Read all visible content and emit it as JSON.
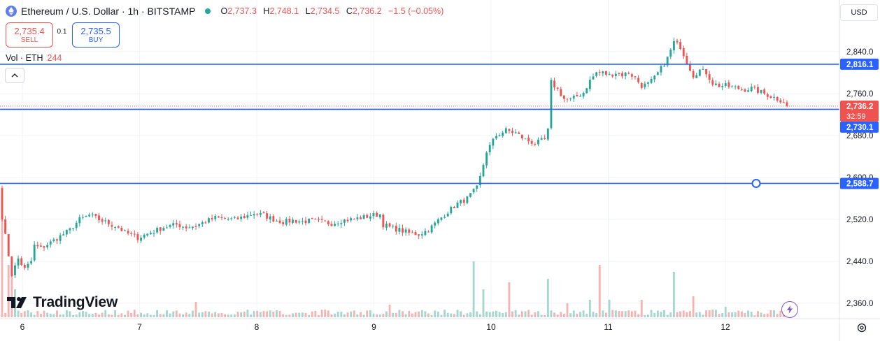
{
  "header": {
    "title": "Ethereum / U.S. Dollar · 1h · BITSTAMP",
    "ohlc": {
      "o_label": "O",
      "o": "2,737.3",
      "h_label": "H",
      "h": "2,748.1",
      "l_label": "L",
      "l": "2,734.5",
      "c_label": "C",
      "c": "2,736.2",
      "change": "−1.5 (−0.05%)"
    },
    "sell_price": "2,735.4",
    "sell_label": "SELL",
    "spread": "0.1",
    "buy_price": "2,735.5",
    "buy_label": "BUY",
    "volume_label": "Vol · ETH",
    "volume_value": "244",
    "currency": "USD"
  },
  "branding": {
    "logo_text": "TradingView"
  },
  "colors": {
    "up": "#26a69a",
    "down": "#ef5350",
    "hline": "#2962ff",
    "up_vol": "#a5d6d0",
    "down_vol": "#f5b3b1"
  },
  "chart_data": {
    "type": "candlestick",
    "symbol": "ETHUSD",
    "exchange": "BITSTAMP",
    "interval": "1h",
    "ylim": [
      2325,
      2895
    ],
    "y_ticks": [
      "2,840.0",
      "2,760.0",
      "2,680.0",
      "2,600.0",
      "2,520.0",
      "2,440.0",
      "2,360.0"
    ],
    "y_tick_values": [
      2840,
      2760,
      2680,
      2600,
      2520,
      2440,
      2360
    ],
    "x_tick_labels": [
      "6",
      "7",
      "8",
      "9",
      "10",
      "11",
      "12"
    ],
    "grid": true,
    "horizontal_lines": [
      {
        "value": 2816.1,
        "label": "2,816.1"
      },
      {
        "value": 2730.1,
        "label": "2,730.1"
      },
      {
        "value": 2588.7,
        "label": "2,588.7"
      }
    ],
    "last_price": {
      "value": 2736.2,
      "label": "2,736.2",
      "countdown": "32:59"
    },
    "path": [
      [
        0,
        2525
      ],
      [
        3,
        2415
      ],
      [
        5,
        2445
      ],
      [
        7,
        2425
      ],
      [
        9,
        2440
      ],
      [
        10,
        2470
      ],
      [
        12,
        2465
      ],
      [
        15,
        2476
      ],
      [
        18,
        2488
      ],
      [
        21,
        2500
      ],
      [
        24,
        2520
      ],
      [
        27,
        2528
      ],
      [
        30,
        2520
      ],
      [
        33,
        2512
      ],
      [
        36,
        2505
      ],
      [
        38,
        2495
      ],
      [
        40,
        2490
      ],
      [
        42,
        2485
      ],
      [
        44,
        2490
      ],
      [
        46,
        2495
      ],
      [
        50,
        2505
      ],
      [
        54,
        2510
      ],
      [
        57,
        2505
      ],
      [
        60,
        2508
      ],
      [
        63,
        2516
      ],
      [
        66,
        2523
      ],
      [
        69,
        2521
      ],
      [
        72,
        2520
      ],
      [
        75,
        2525
      ],
      [
        78,
        2532
      ],
      [
        81,
        2528
      ],
      [
        84,
        2520
      ],
      [
        87,
        2515
      ],
      [
        90,
        2518
      ],
      [
        93,
        2516
      ],
      [
        96,
        2518
      ],
      [
        99,
        2515
      ],
      [
        102,
        2512
      ],
      [
        105,
        2518
      ],
      [
        108,
        2520
      ],
      [
        111,
        2523
      ],
      [
        114,
        2527
      ],
      [
        117,
        2530
      ],
      [
        118,
        2510
      ],
      [
        120,
        2505
      ],
      [
        123,
        2500
      ],
      [
        126,
        2494
      ],
      [
        129,
        2492
      ],
      [
        132,
        2500
      ],
      [
        135,
        2518
      ],
      [
        138,
        2535
      ],
      [
        141,
        2550
      ],
      [
        144,
        2560
      ],
      [
        147,
        2580
      ],
      [
        148,
        2600
      ],
      [
        150,
        2650
      ],
      [
        153,
        2680
      ],
      [
        156,
        2690
      ],
      [
        159,
        2685
      ],
      [
        162,
        2672
      ],
      [
        165,
        2665
      ],
      [
        168,
        2672
      ],
      [
        169,
        2690
      ],
      [
        170,
        2782
      ],
      [
        172,
        2768
      ],
      [
        174,
        2750
      ],
      [
        176,
        2748
      ],
      [
        178,
        2755
      ],
      [
        180,
        2762
      ],
      [
        182,
        2785
      ],
      [
        184,
        2800
      ],
      [
        186,
        2800
      ],
      [
        188,
        2795
      ],
      [
        190,
        2800
      ],
      [
        192,
        2796
      ],
      [
        194,
        2800
      ],
      [
        196,
        2790
      ],
      [
        198,
        2775
      ],
      [
        200,
        2778
      ],
      [
        202,
        2790
      ],
      [
        204,
        2808
      ],
      [
        206,
        2828
      ],
      [
        208,
        2858
      ],
      [
        210,
        2850
      ],
      [
        212,
        2820
      ],
      [
        214,
        2795
      ],
      [
        216,
        2805
      ],
      [
        218,
        2800
      ],
      [
        220,
        2780
      ],
      [
        222,
        2775
      ],
      [
        224,
        2775
      ],
      [
        226,
        2772
      ],
      [
        228,
        2770
      ],
      [
        230,
        2768
      ],
      [
        232,
        2770
      ],
      [
        234,
        2765
      ],
      [
        236,
        2760
      ],
      [
        238,
        2755
      ],
      [
        240,
        2750
      ],
      [
        242,
        2745
      ],
      [
        243,
        2736.2
      ]
    ],
    "volume_spikes": [
      [
        0,
        180
      ],
      [
        2,
        75
      ],
      [
        3,
        70
      ],
      [
        4,
        40
      ],
      [
        60,
        22
      ],
      [
        120,
        18
      ],
      [
        146,
        80
      ],
      [
        149,
        40
      ],
      [
        157,
        50
      ],
      [
        169,
        55
      ],
      [
        175,
        20
      ],
      [
        182,
        25
      ],
      [
        185,
        75
      ],
      [
        188,
        25
      ],
      [
        198,
        25
      ],
      [
        208,
        65
      ],
      [
        214,
        30
      ],
      [
        224,
        15
      ]
    ],
    "n_candles": 244
  }
}
